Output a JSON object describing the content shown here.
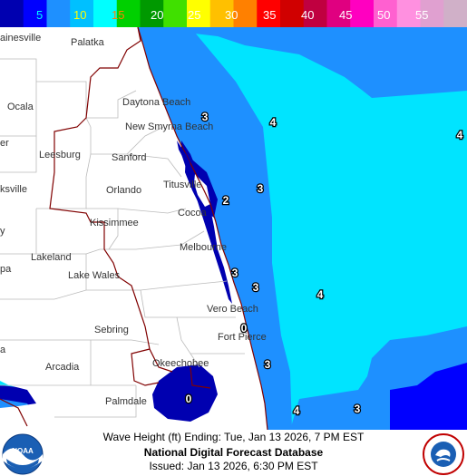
{
  "legend": {
    "ticks": [
      {
        "label": "5",
        "color": "#00ffff"
      },
      {
        "label": "10",
        "color": "#ffff00"
      },
      {
        "label": "15",
        "color": "#ff8000"
      },
      {
        "label": "20",
        "color": "#ffffff"
      },
      {
        "label": "25",
        "color": "#ffffff"
      },
      {
        "label": "30",
        "color": "#ffffff"
      },
      {
        "label": "35",
        "color": "#ffffff"
      },
      {
        "label": "40",
        "color": "#ffffff"
      },
      {
        "label": "45",
        "color": "#ffffff"
      },
      {
        "label": "50",
        "color": "#ffffff"
      },
      {
        "label": "55",
        "color": "#ffffff"
      }
    ],
    "colors": [
      "#0000b0",
      "#0000ff",
      "#1e90ff",
      "#00c0ff",
      "#00ffff",
      "#00d000",
      "#009900",
      "#40e000",
      "#ffff00",
      "#ffc000",
      "#ff8000",
      "#ff0000",
      "#d00000",
      "#c00040",
      "#e00080",
      "#ff00c0",
      "#ff60d0",
      "#ff90e0",
      "#e0a0d0",
      "#d0b0c8"
    ]
  },
  "map": {
    "cities": [
      "ainesville",
      "Palatka",
      "Ocala",
      "Daytona Beach",
      "New Smyrna Beach",
      "Leesburg",
      "Sanford",
      "er",
      "Orlando",
      "Titusville",
      "Cocoa",
      "ksville",
      "Kissimmee",
      "Melbourne",
      "Lakeland",
      "Lake Wales",
      "pa",
      "Vero Beach",
      "Fort Pierce",
      "Sebring",
      "Arcadia",
      "Okeechobee",
      "Palmdale",
      "a",
      "y"
    ],
    "wave_values": [
      "3",
      "4",
      "4",
      "3",
      "2",
      "3",
      "3",
      "4",
      "0",
      "3",
      "0",
      "4",
      "3"
    ],
    "colors": {
      "ocean_light": "#00e4ff",
      "ocean_mid": "#1e90ff",
      "ocean_deep": "#0000b0",
      "land": "#ffffff",
      "county_line": "#cccccc",
      "state_line": "#800000"
    }
  },
  "footer": {
    "line1": "Wave Height (ft) Ending: Tue, Jan 13 2026, 7 PM EST",
    "line2": "National Digital Forecast Database",
    "line3": "Issued: Jan 13 2026, 6:30 PM EST"
  },
  "logos": {
    "left": "NOAA",
    "right": "NATIONAL WEATHER SERVICE"
  }
}
